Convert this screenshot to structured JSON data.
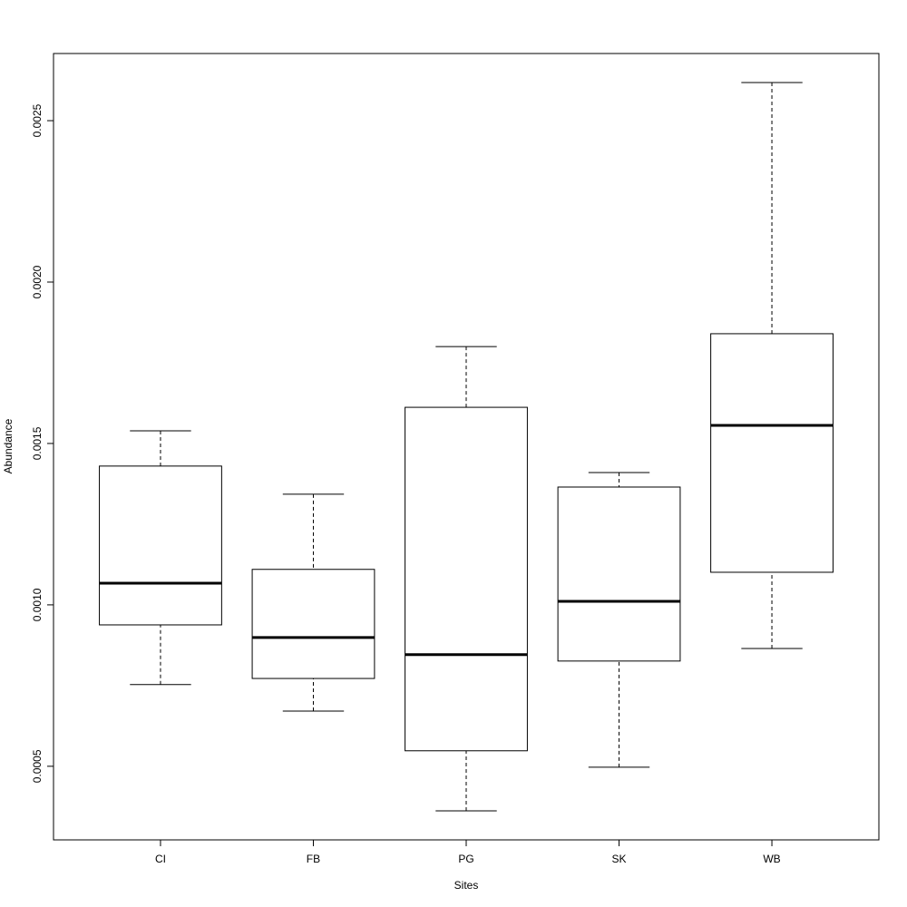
{
  "chart_data": {
    "type": "boxplot",
    "x_label": "Sites",
    "y_label": "Abundance",
    "categories": [
      "CI",
      "FB",
      "PG",
      "SK",
      "WB"
    ],
    "min": [
      0.000753,
      0.000671,
      0.000362,
      0.000497,
      0.000865
    ],
    "q1": [
      0.000938,
      0.000772,
      0.000548,
      0.000826,
      0.001101
    ],
    "median": [
      0.001067,
      0.000899,
      0.000846,
      0.001011,
      0.001556
    ],
    "q3": [
      0.00143,
      0.00111,
      0.001612,
      0.001365,
      0.00184
    ],
    "max": [
      0.001539,
      0.001343,
      0.0018,
      0.00141,
      0.002618
    ],
    "color": "#000000",
    "ylim": [
      0.000272,
      0.002708
    ],
    "yticks": [
      0.0005,
      {
        "value": 0.001,
        "label": "0.0010"
      },
      0.0015,
      {
        "value": 0.002,
        "label": "0.0020"
      },
      0.0025
    ]
  }
}
